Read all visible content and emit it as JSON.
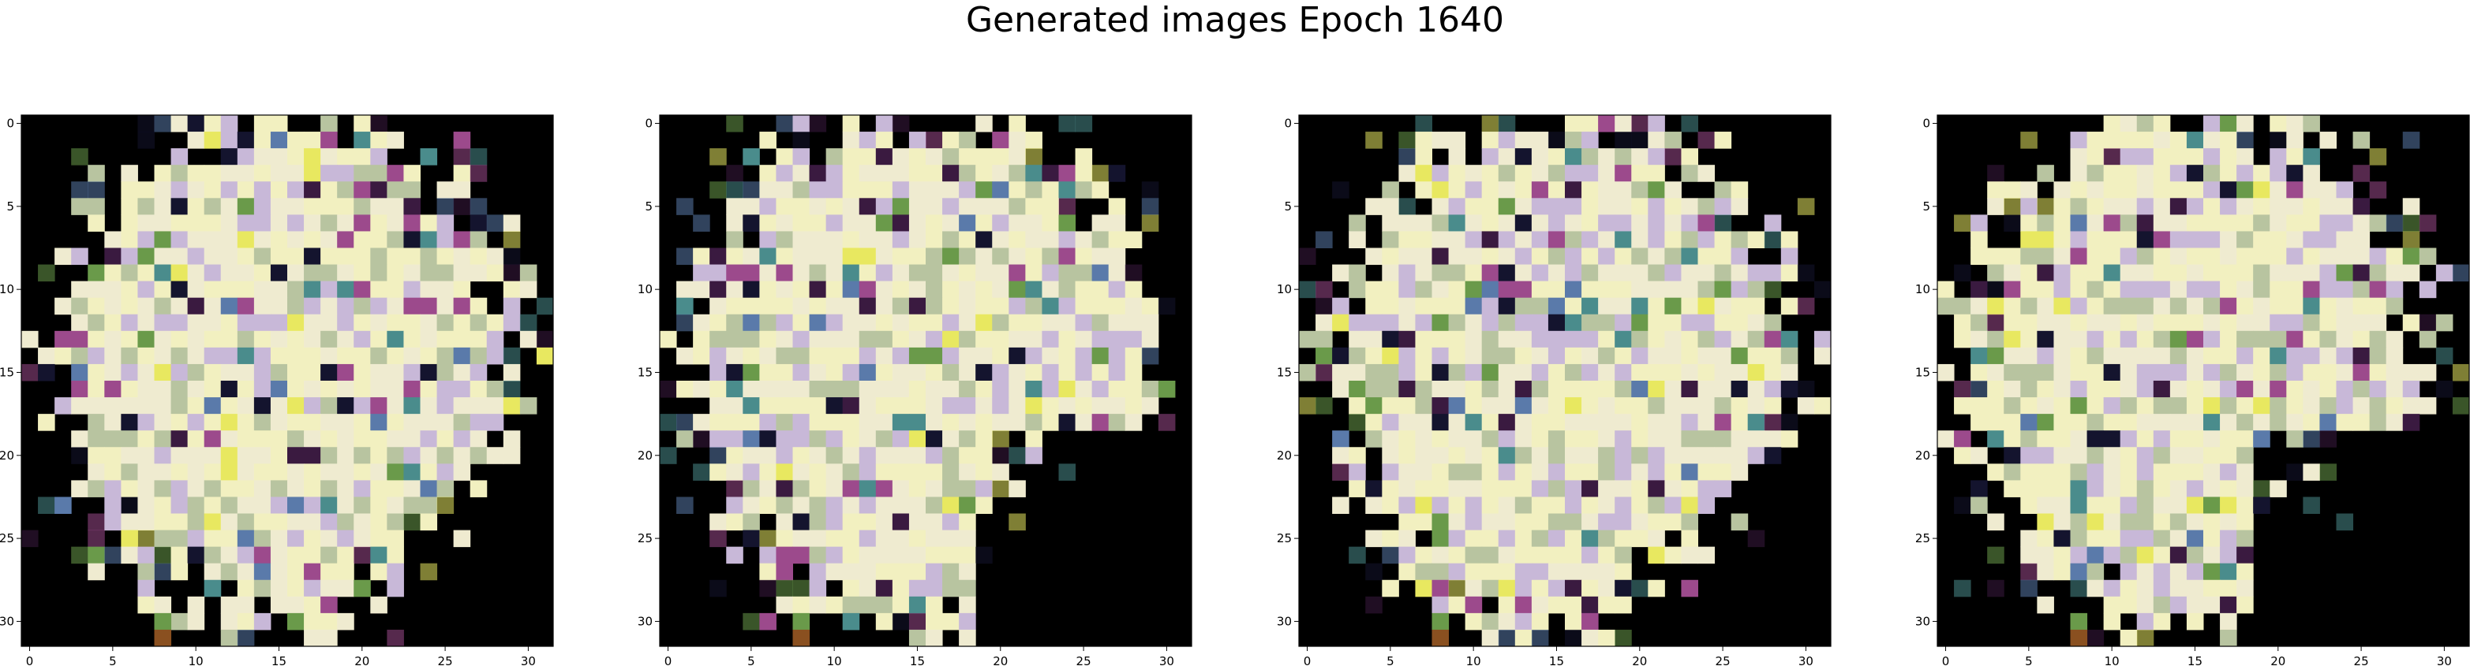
{
  "figure_title": "Generated images Epoch 1640",
  "chart_data": [
    {
      "type": "heatmap",
      "subplot": 1,
      "grid_size": [
        32,
        32
      ],
      "xlim": [
        -0.5,
        31.5
      ],
      "ylim": [
        31.5,
        -0.5
      ],
      "xticks": [
        0,
        5,
        10,
        15,
        20,
        25,
        30
      ],
      "yticks": [
        0,
        5,
        10,
        15,
        20,
        25,
        30
      ],
      "background_color": "#000000"
    },
    {
      "type": "heatmap",
      "subplot": 2,
      "grid_size": [
        32,
        32
      ],
      "xlim": [
        -0.5,
        31.5
      ],
      "ylim": [
        31.5,
        -0.5
      ],
      "xticks": [
        0,
        5,
        10,
        15,
        20,
        25,
        30
      ],
      "yticks": [
        0,
        5,
        10,
        15,
        20,
        25,
        30
      ],
      "background_color": "#000000"
    },
    {
      "type": "heatmap",
      "subplot": 3,
      "grid_size": [
        32,
        32
      ],
      "xlim": [
        -0.5,
        31.5
      ],
      "ylim": [
        31.5,
        -0.5
      ],
      "xticks": [
        0,
        5,
        10,
        15,
        20,
        25,
        30
      ],
      "yticks": [
        0,
        5,
        10,
        15,
        20,
        25,
        30
      ],
      "background_color": "#000000"
    },
    {
      "type": "heatmap",
      "subplot": 4,
      "grid_size": [
        32,
        32
      ],
      "xlim": [
        -0.5,
        31.5
      ],
      "ylim": [
        31.5,
        -0.5
      ],
      "xticks": [
        0,
        5,
        10,
        15,
        20,
        25,
        30
      ],
      "yticks": [
        0,
        5,
        10,
        15,
        20,
        25,
        30
      ],
      "background_color": "#000000"
    }
  ],
  "palette": {
    "cream": "#EFEBD0",
    "pale_yellow": "#F2F0C0",
    "sage": "#B8C4A0",
    "lavender": "#C8B8D8",
    "magenta": "#9C4A8C",
    "dark_purple": "#3A1A40",
    "teal": "#4A8C8C",
    "steel_blue": "#5A7AAA",
    "yellow": "#E8E860",
    "green": "#6A9A4A",
    "brown": "#8A5020",
    "navy": "#14142E"
  }
}
